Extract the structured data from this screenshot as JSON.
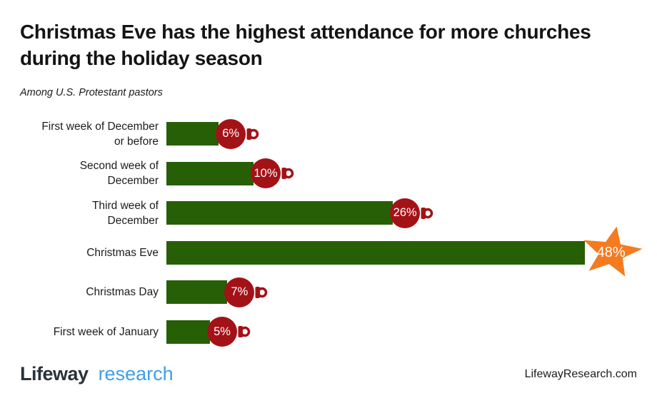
{
  "page": {
    "title_lines": [
      "Christmas Eve has the highest attendance for more churches",
      "during the holiday season"
    ],
    "subtitle": "Among U.S. Protestant pastors"
  },
  "footer": {
    "logo_primary": "Lifeway",
    "logo_secondary": "research",
    "website": "LifewayResearch.com"
  },
  "colors": {
    "bar_green": "#275f06",
    "ornament_red": "#a31217",
    "star_orange": "#f47b20",
    "logo_blue": "#3f9ee8",
    "logo_dark": "#2a323b",
    "value_text": "#ffffff"
  },
  "chart_data": {
    "type": "bar",
    "orientation": "horizontal",
    "title": "Christmas Eve has the highest attendance for more churches during the holiday season",
    "subtitle": "Among U.S. Protestant pastors",
    "unit": "%",
    "xlim": [
      0,
      50
    ],
    "grid": false,
    "legend": false,
    "categories": [
      "First week of December or before",
      "Second week of December",
      "Third week of December",
      "Christmas Eve",
      "Christmas Day",
      "First week of January"
    ],
    "values": [
      6,
      10,
      26,
      48,
      7,
      5
    ],
    "highlight_category": "Christmas Eve",
    "items": [
      {
        "label_lines": [
          "First week of December",
          "or before"
        ],
        "value": 6,
        "marker": "ornament"
      },
      {
        "label_lines": [
          "Second week of",
          "December"
        ],
        "value": 10,
        "marker": "ornament"
      },
      {
        "label_lines": [
          "Third week of",
          "December"
        ],
        "value": 26,
        "marker": "ornament"
      },
      {
        "label_lines": [
          "Christmas Eve"
        ],
        "value": 48,
        "marker": "star"
      },
      {
        "label_lines": [
          "Christmas Day"
        ],
        "value": 7,
        "marker": "ornament"
      },
      {
        "label_lines": [
          "First week of January"
        ],
        "value": 5,
        "marker": "ornament"
      }
    ]
  }
}
